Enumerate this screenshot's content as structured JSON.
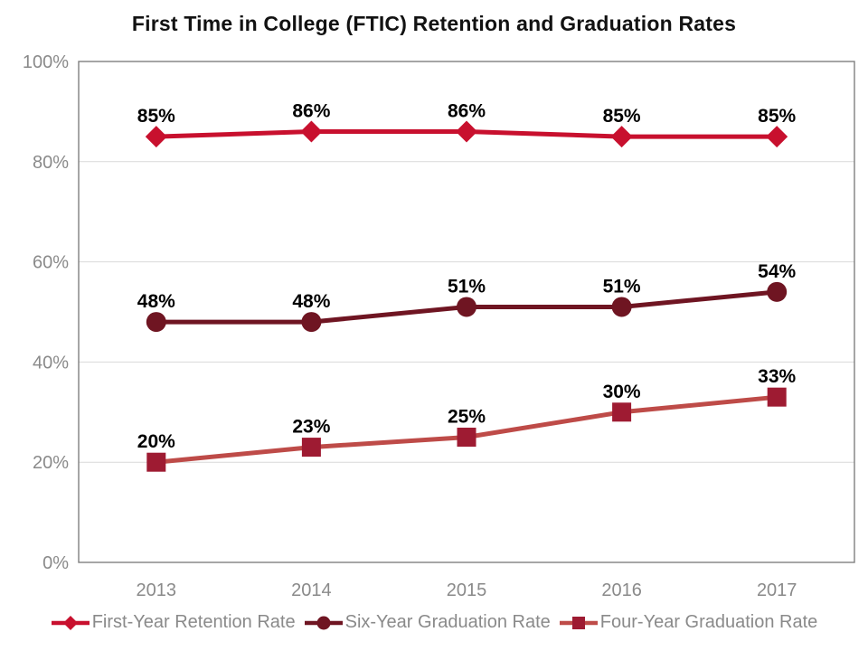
{
  "title": "First Time in College (FTIC) Retention and Graduation Rates",
  "chart_data": {
    "type": "line",
    "title": "First Time in College (FTIC) Retention and Graduation Rates",
    "categories": [
      "2013",
      "2014",
      "2015",
      "2016",
      "2017"
    ],
    "series": [
      {
        "name": "First-Year Retention Rate",
        "values": [
          85,
          86,
          86,
          85,
          85
        ],
        "data_labels": [
          "85%",
          "86%",
          "86%",
          "85%",
          "85%"
        ],
        "line_color": "#C8102E",
        "marker": "diamond",
        "marker_color": "#C8102E"
      },
      {
        "name": "Six-Year Graduation Rate",
        "values": [
          48,
          48,
          51,
          51,
          54
        ],
        "data_labels": [
          "48%",
          "48%",
          "51%",
          "51%",
          "54%"
        ],
        "line_color": "#6F1522",
        "marker": "circle",
        "marker_color": "#6F1522"
      },
      {
        "name": "Four-Year Graduation Rate",
        "values": [
          20,
          23,
          25,
          30,
          33
        ],
        "data_labels": [
          "20%",
          "23%",
          "25%",
          "30%",
          "33%"
        ],
        "line_color": "#BE4B48",
        "marker": "square",
        "marker_color": "#9E1B32"
      }
    ],
    "xlabel": "",
    "ylabel": "",
    "ylim": [
      0,
      100
    ],
    "yticks": [
      0,
      20,
      40,
      60,
      80,
      100
    ],
    "ytick_labels": [
      "0%",
      "20%",
      "40%",
      "60%",
      "80%",
      "100%"
    ],
    "grid": true,
    "legend_position": "bottom",
    "style": {
      "axis_text_color": "#8A8A8A",
      "legend_text_color": "#8A8A8A",
      "gridline_color": "#D9D9D9",
      "plot_border_color": "#7F7F7F",
      "data_label_color": "#000000",
      "title_color": "#121212",
      "background": "#FFFFFF"
    }
  }
}
